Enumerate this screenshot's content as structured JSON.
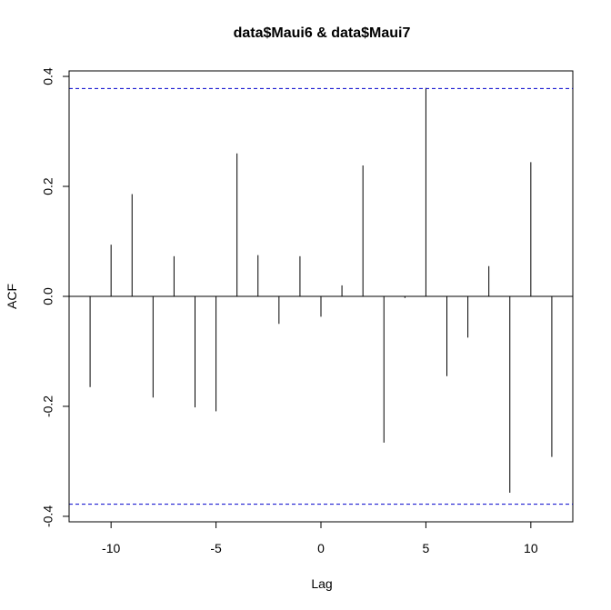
{
  "chart_data": {
    "type": "bar",
    "title": "data$Maui6 & data$Maui7",
    "xlabel": "Lag",
    "ylabel": "ACF",
    "xlim": [
      -12,
      12
    ],
    "ylim": [
      -0.41,
      0.41
    ],
    "x_ticks": [
      -10,
      -5,
      0,
      5,
      10
    ],
    "x_tick_labels": [
      "-10",
      "-5",
      "0",
      "5",
      "10"
    ],
    "y_ticks": [
      -0.4,
      -0.2,
      0.0,
      0.2,
      0.4
    ],
    "y_tick_labels": [
      "-0.4",
      "-0.2",
      "0.0",
      "0.2",
      "0.4"
    ],
    "confidence_bound": 0.378,
    "confidence_color": "#0000cc",
    "grid": false,
    "lags": [
      -11,
      -10,
      -9,
      -8,
      -7,
      -6,
      -5,
      -4,
      -3,
      -2,
      -1,
      0,
      1,
      2,
      3,
      4,
      5,
      6,
      7,
      8,
      9,
      10,
      11
    ],
    "values": [
      -0.165,
      0.094,
      0.186,
      -0.184,
      0.073,
      -0.202,
      -0.209,
      0.26,
      0.075,
      -0.05,
      0.073,
      -0.037,
      0.02,
      0.238,
      -0.266,
      -0.003,
      0.379,
      -0.145,
      -0.075,
      0.055,
      -0.357,
      0.244,
      -0.292
    ]
  }
}
